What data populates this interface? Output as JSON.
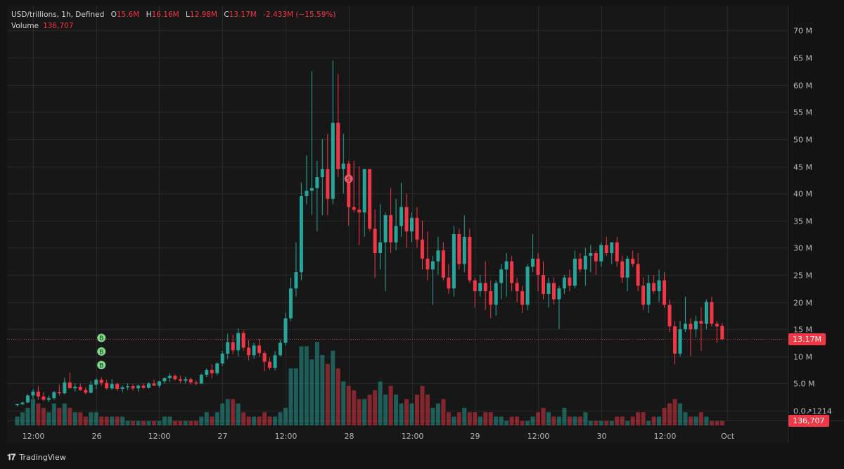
{
  "legend": {
    "symbol": "USD/trillions, 1h, Defined",
    "open_key": "O",
    "open": "15.6M",
    "high_key": "H",
    "high": "16.16M",
    "low_key": "L",
    "low": "12.98M",
    "close_key": "C",
    "close": "13.17M",
    "change": "-2.433M (−15.59%)",
    "volume_label": "Volume",
    "volume": "136,707"
  },
  "price_tag": "13.17M",
  "volume_tag": "136,707",
  "brand": "TradingView",
  "colors": {
    "up": "#26a69a",
    "down": "#f23645",
    "grid": "#2a2a2a",
    "text": "#b2b5be"
  },
  "signals": [
    {
      "type": "B",
      "time": 16,
      "price": 13.4
    },
    {
      "type": "B",
      "time": 16,
      "price": 10.9
    },
    {
      "type": "B",
      "time": 16,
      "price": 8.4
    },
    {
      "type": "S",
      "time": 63,
      "price": 42.7
    }
  ],
  "chart_data": {
    "type": "candlestick",
    "y_ticks": [
      "70 M",
      "65 M",
      "60 M",
      "55 M",
      "50 M",
      "45 M",
      "40 M",
      "35 M",
      "30 M",
      "25 M",
      "20 M",
      "15 M",
      "10 M",
      "5.0 M",
      "0.0↗1214"
    ],
    "ylim": [
      0,
      72
    ],
    "x_ticks": [
      {
        "label": "12:00",
        "t": 3
      },
      {
        "label": "26",
        "t": 15
      },
      {
        "label": "12:00",
        "t": 27
      },
      {
        "label": "27",
        "t": 39
      },
      {
        "label": "12:00",
        "t": 51
      },
      {
        "label": "28",
        "t": 63
      },
      {
        "label": "12:00",
        "t": 75
      },
      {
        "label": "29",
        "t": 87
      },
      {
        "label": "12:00",
        "t": 99
      },
      {
        "label": "30",
        "t": 111
      },
      {
        "label": "12:00",
        "t": 123
      },
      {
        "label": "Oct",
        "t": 135
      }
    ],
    "candles": [
      [
        1.0,
        1.3,
        0.8,
        1.2,
        2
      ],
      [
        1.2,
        1.6,
        1.0,
        1.5,
        3
      ],
      [
        1.5,
        3.0,
        1.4,
        2.8,
        4
      ],
      [
        2.8,
        4.0,
        2.2,
        3.5,
        6
      ],
      [
        3.5,
        4.5,
        2.0,
        2.6,
        5
      ],
      [
        2.6,
        3.4,
        1.8,
        2.0,
        4
      ],
      [
        2.0,
        2.8,
        1.6,
        2.3,
        3
      ],
      [
        2.3,
        3.6,
        2.0,
        3.4,
        5
      ],
      [
        3.4,
        4.8,
        2.8,
        3.2,
        4
      ],
      [
        3.2,
        6.0,
        3.0,
        5.2,
        5
      ],
      [
        5.2,
        7.0,
        4.5,
        4.1,
        4
      ],
      [
        4.1,
        5.0,
        3.5,
        4.4,
        3
      ],
      [
        4.4,
        5.0,
        3.6,
        3.8,
        3
      ],
      [
        3.8,
        4.3,
        3.0,
        3.3,
        2
      ],
      [
        3.3,
        5.5,
        3.2,
        4.8,
        3
      ],
      [
        4.8,
        6.0,
        4.0,
        5.7,
        3
      ],
      [
        5.7,
        6.2,
        4.6,
        5.1,
        2
      ],
      [
        5.1,
        5.7,
        3.9,
        4.1,
        2
      ],
      [
        4.1,
        5.8,
        3.8,
        4.9,
        2
      ],
      [
        4.9,
        5.2,
        3.6,
        4.0,
        2
      ],
      [
        4.0,
        4.6,
        3.3,
        4.3,
        2
      ],
      [
        4.3,
        5.0,
        3.8,
        4.5,
        1
      ],
      [
        4.5,
        4.9,
        3.7,
        4.1,
        1
      ],
      [
        4.1,
        4.8,
        3.5,
        4.6,
        1
      ],
      [
        4.6,
        5.0,
        4.0,
        4.2,
        1
      ],
      [
        4.2,
        5.3,
        4.0,
        5.0,
        1
      ],
      [
        5.0,
        5.7,
        4.5,
        4.6,
        1
      ],
      [
        4.6,
        5.5,
        4.2,
        5.4,
        1
      ],
      [
        5.4,
        6.1,
        5.0,
        6.0,
        2
      ],
      [
        6.0,
        6.9,
        5.3,
        6.4,
        2
      ],
      [
        6.4,
        6.7,
        5.5,
        5.8,
        1
      ],
      [
        5.8,
        6.4,
        5.1,
        5.5,
        1
      ],
      [
        5.5,
        6.3,
        5.0,
        5.8,
        1
      ],
      [
        5.8,
        6.1,
        4.8,
        5.2,
        1
      ],
      [
        5.2,
        5.6,
        4.7,
        5.0,
        1
      ],
      [
        5.0,
        6.8,
        4.9,
        6.6,
        2
      ],
      [
        6.6,
        7.8,
        6.2,
        7.5,
        3
      ],
      [
        7.5,
        8.5,
        6.0,
        6.9,
        2
      ],
      [
        6.9,
        8.9,
        6.5,
        8.7,
        3
      ],
      [
        8.7,
        11.0,
        8.2,
        10.5,
        5
      ],
      [
        10.5,
        14.2,
        9.5,
        12.6,
        6
      ],
      [
        12.6,
        14.0,
        10.4,
        11.1,
        6
      ],
      [
        11.1,
        15.2,
        10.0,
        14.3,
        5
      ],
      [
        14.3,
        14.8,
        11.0,
        11.6,
        3
      ],
      [
        11.6,
        13.0,
        9.2,
        10.2,
        2
      ],
      [
        10.2,
        12.5,
        9.6,
        12.0,
        2
      ],
      [
        12.0,
        13.2,
        10.0,
        10.6,
        2
      ],
      [
        10.6,
        11.0,
        7.2,
        9.0,
        3
      ],
      [
        9.0,
        9.8,
        7.5,
        7.9,
        2
      ],
      [
        7.9,
        11.0,
        7.4,
        10.2,
        2
      ],
      [
        10.2,
        13.0,
        10.0,
        12.5,
        3
      ],
      [
        12.5,
        18.0,
        12.0,
        17.0,
        4
      ],
      [
        17.0,
        24.5,
        16.5,
        22.5,
        13
      ],
      [
        22.5,
        31.0,
        21.0,
        25.5,
        13
      ],
      [
        25.5,
        42.0,
        24.0,
        39.5,
        18
      ],
      [
        39.5,
        47.0,
        38.0,
        40.5,
        18
      ],
      [
        40.5,
        62.5,
        36.0,
        41.0,
        15
      ],
      [
        41.0,
        46.0,
        33.0,
        43.0,
        19
      ],
      [
        43.0,
        50.0,
        36.0,
        44.5,
        16
      ],
      [
        44.5,
        51.0,
        36.0,
        39.0,
        14
      ],
      [
        39.0,
        64.5,
        38.0,
        53.0,
        17
      ],
      [
        53.0,
        62.0,
        43.0,
        44.5,
        13
      ],
      [
        44.5,
        51.0,
        40.0,
        45.5,
        10
      ],
      [
        45.5,
        46.0,
        34.0,
        37.5,
        9
      ],
      [
        37.5,
        46.0,
        36.5,
        37.0,
        8
      ],
      [
        37.0,
        45.0,
        30.5,
        36.5,
        6
      ],
      [
        36.5,
        44.5,
        32.0,
        44.5,
        6
      ],
      [
        44.5,
        44.5,
        33.0,
        33.5,
        7
      ],
      [
        33.5,
        37.0,
        24.5,
        29.0,
        8
      ],
      [
        29.0,
        38.0,
        26.0,
        31.0,
        10
      ],
      [
        31.0,
        36.5,
        22.0,
        36.0,
        7
      ],
      [
        36.0,
        41.0,
        29.0,
        31.0,
        9
      ],
      [
        31.0,
        39.0,
        29.5,
        34.0,
        7
      ],
      [
        34.0,
        42.0,
        32.0,
        37.5,
        5
      ],
      [
        37.5,
        40.0,
        30.0,
        33.0,
        6
      ],
      [
        33.0,
        36.5,
        31.0,
        35.5,
        5
      ],
      [
        35.5,
        37.5,
        30.0,
        31.5,
        7
      ],
      [
        31.5,
        35.0,
        26.0,
        28.0,
        9
      ],
      [
        28.0,
        33.0,
        24.0,
        26.0,
        7
      ],
      [
        26.0,
        28.5,
        19.5,
        27.5,
        4
      ],
      [
        27.5,
        32.0,
        25.0,
        29.5,
        5
      ],
      [
        29.5,
        31.0,
        24.0,
        24.5,
        6
      ],
      [
        24.5,
        27.0,
        21.5,
        22.5,
        3
      ],
      [
        22.5,
        34.0,
        21.0,
        32.5,
        2
      ],
      [
        32.5,
        33.5,
        26.0,
        27.0,
        3
      ],
      [
        27.0,
        36.0,
        25.5,
        32.0,
        4
      ],
      [
        32.0,
        33.5,
        23.5,
        24.0,
        3
      ],
      [
        24.0,
        24.5,
        19.0,
        22.0,
        3
      ],
      [
        22.0,
        25.0,
        21.0,
        23.5,
        2
      ],
      [
        23.5,
        27.5,
        18.5,
        22.0,
        3
      ],
      [
        22.0,
        24.0,
        17.0,
        19.5,
        3
      ],
      [
        19.5,
        24.0,
        17.5,
        23.5,
        2
      ],
      [
        23.5,
        27.0,
        20.5,
        26.0,
        2
      ],
      [
        26.0,
        29.0,
        21.0,
        27.5,
        1
      ],
      [
        27.5,
        28.5,
        22.0,
        23.5,
        2
      ],
      [
        23.5,
        24.5,
        20.0,
        22.0,
        2
      ],
      [
        22.0,
        23.0,
        18.0,
        19.5,
        1
      ],
      [
        19.5,
        27.0,
        18.5,
        26.5,
        1
      ],
      [
        26.5,
        32.5,
        25.5,
        28.0,
        2
      ],
      [
        28.0,
        29.0,
        22.0,
        25.0,
        3
      ],
      [
        25.0,
        27.5,
        20.5,
        21.5,
        4
      ],
      [
        21.5,
        24.5,
        19.0,
        23.5,
        3
      ],
      [
        23.5,
        24.5,
        19.5,
        20.5,
        2
      ],
      [
        20.5,
        23.0,
        15.0,
        22.5,
        2
      ],
      [
        22.5,
        25.0,
        21.5,
        24.5,
        4
      ],
      [
        24.5,
        26.0,
        22.0,
        23.0,
        2
      ],
      [
        23.0,
        29.5,
        22.5,
        28.0,
        2
      ],
      [
        28.0,
        29.0,
        25.5,
        26.0,
        2
      ],
      [
        26.0,
        30.0,
        23.0,
        28.5,
        3
      ],
      [
        28.5,
        30.5,
        25.5,
        29.0,
        1
      ],
      [
        29.0,
        29.5,
        25.0,
        27.5,
        1
      ],
      [
        27.5,
        31.0,
        26.5,
        30.5,
        1
      ],
      [
        30.5,
        32.0,
        28.5,
        29.0,
        1
      ],
      [
        29.0,
        30.5,
        27.0,
        31.0,
        1
      ],
      [
        31.0,
        32.0,
        26.5,
        27.5,
        2
      ],
      [
        27.5,
        28.5,
        23.5,
        24.5,
        2
      ],
      [
        24.5,
        28.5,
        22.0,
        28.0,
        1
      ],
      [
        28.0,
        29.5,
        26.5,
        27.0,
        2
      ],
      [
        27.0,
        29.0,
        22.0,
        23.0,
        3
      ],
      [
        23.0,
        24.5,
        18.5,
        19.5,
        3
      ],
      [
        19.5,
        25.0,
        18.0,
        23.5,
        1
      ],
      [
        23.5,
        25.0,
        21.5,
        22.0,
        2
      ],
      [
        22.0,
        26.0,
        20.0,
        24.0,
        2
      ],
      [
        24.0,
        25.5,
        19.0,
        19.5,
        4
      ],
      [
        19.5,
        20.5,
        14.5,
        15.5,
        5
      ],
      [
        15.5,
        16.5,
        8.5,
        10.5,
        6
      ],
      [
        10.5,
        16.5,
        10.0,
        15.0,
        5
      ],
      [
        15.0,
        21.0,
        14.5,
        16.0,
        3
      ],
      [
        16.0,
        17.0,
        10.0,
        15.0,
        2
      ],
      [
        15.0,
        17.5,
        13.5,
        16.5,
        2
      ],
      [
        16.5,
        19.0,
        11.0,
        16.0,
        3
      ],
      [
        16.0,
        20.5,
        15.0,
        20.0,
        2
      ],
      [
        20.0,
        21.0,
        15.5,
        16.0,
        1
      ],
      [
        16.0,
        16.5,
        12.5,
        15.5,
        1
      ],
      [
        15.6,
        16.16,
        12.98,
        13.17,
        1
      ]
    ]
  }
}
